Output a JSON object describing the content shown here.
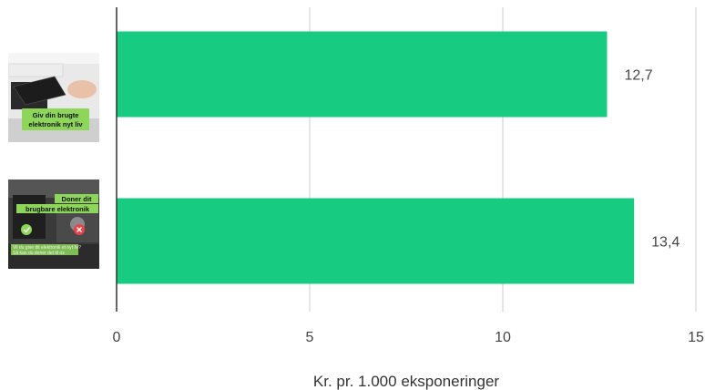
{
  "chart_data": {
    "type": "bar",
    "orientation": "horizontal",
    "categories": [
      {
        "image": "thumbnail-electronics-drawer",
        "caption_lines": [
          "Giv din brugte",
          "elektronik nyt liv"
        ]
      },
      {
        "image": "thumbnail-donate-electronics",
        "caption_lines": [
          "Doner dit",
          "brugbare elektronik"
        ],
        "small_text": [
          "Vil du give dit elektronik et nyt liv?",
          "Så kan du doner det til os"
        ]
      }
    ],
    "values": [
      12.7,
      13.4
    ],
    "value_labels": [
      "12,7",
      "13,4"
    ],
    "xlabel": "Kr. pr. 1.000 eksponeringer",
    "xlim": [
      0,
      15
    ],
    "x_ticks": [
      0,
      5,
      10,
      15
    ],
    "x_tick_labels": [
      "0",
      "5",
      "10",
      "15"
    ],
    "grid": "vertical",
    "colors": {
      "bar": "#17cb80",
      "grid": "#cccccc",
      "axis": "#333333",
      "thumb_banner": "#8ed65a"
    }
  }
}
